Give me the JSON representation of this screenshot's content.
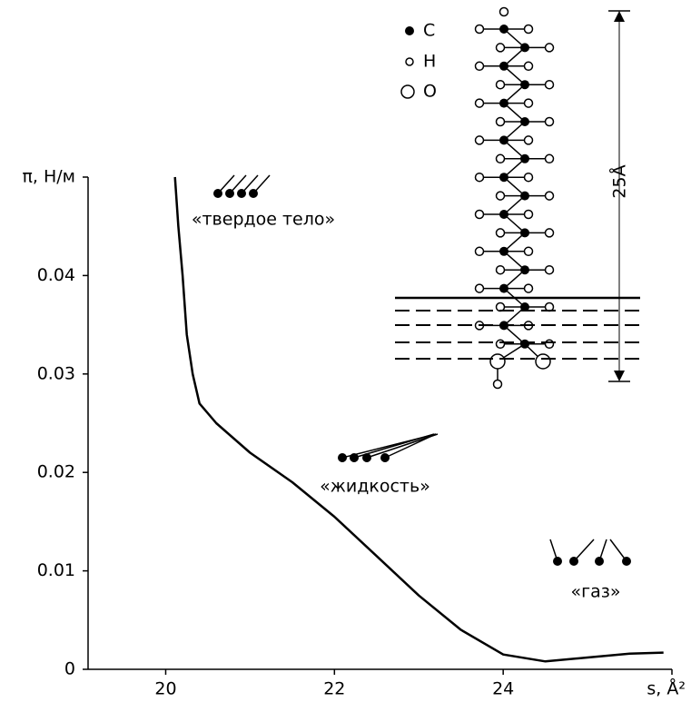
{
  "chart_data": {
    "type": "line",
    "x": [
      20.11,
      20.15,
      20.2,
      20.25,
      20.32,
      20.4,
      20.6,
      21,
      21.5,
      22,
      22.5,
      23,
      23.5,
      24,
      24.5,
      25,
      25.5,
      25.9
    ],
    "values": [
      0.05,
      0.045,
      0.04,
      0.034,
      0.03,
      0.027,
      0.025,
      0.022,
      0.019,
      0.0155,
      0.0115,
      0.0075,
      0.004,
      0.0015,
      0.0008,
      0.0012,
      0.0016,
      0.0017
    ],
    "color": "#000000",
    "xlim": [
      19.08,
      26
    ],
    "xticks": [
      20,
      22,
      24,
      {
        "value": 26,
        "label": "s, Å²"
      }
    ],
    "ylim": [
      0,
      0.05
    ],
    "yticks": [
      0,
      0.01,
      0.02,
      0.03,
      0.04,
      {
        "value": 0.05,
        "label": "π, Н/м"
      }
    ],
    "annotations": [
      "«твердое тело»",
      "«жидкость»",
      "«газ»",
      "25Å"
    ],
    "legend": [
      "C",
      "H",
      "O"
    ]
  }
}
